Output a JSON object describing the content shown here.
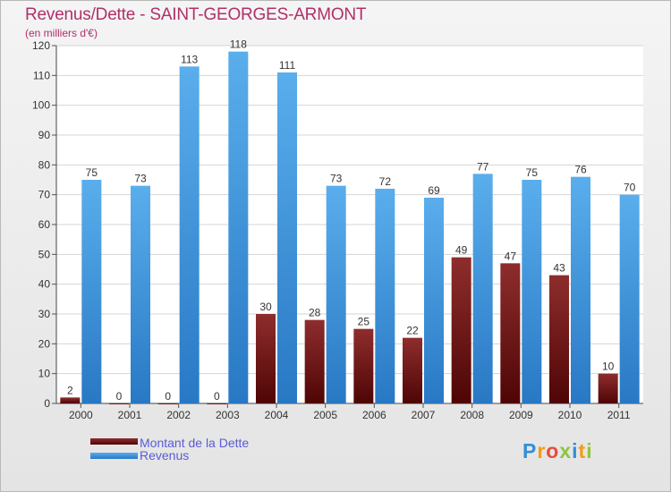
{
  "title": "Revenus/Dette - SAINT-GEORGES-ARMONT",
  "subtitle": "(en milliers d'€)",
  "chart_data": {
    "type": "bar",
    "categories": [
      "2000",
      "2001",
      "2002",
      "2003",
      "2004",
      "2005",
      "2006",
      "2007",
      "2008",
      "2009",
      "2010",
      "2011"
    ],
    "series": [
      {
        "name": "Montant de la Dette",
        "values": [
          2,
          0,
          0,
          0,
          30,
          28,
          25,
          22,
          49,
          47,
          43,
          10
        ],
        "color": "#7a1a1a"
      },
      {
        "name": "Revenus",
        "values": [
          75,
          73,
          113,
          118,
          111,
          73,
          72,
          69,
          77,
          75,
          76,
          70
        ],
        "color": "#4a9ee0"
      }
    ],
    "ylim": [
      0,
      120
    ],
    "yticks": [
      0,
      10,
      20,
      30,
      40,
      50,
      60,
      70,
      80,
      90,
      100,
      110,
      120
    ],
    "grid": true,
    "legend_position": "bottom-left"
  },
  "logo": {
    "letters": [
      "P",
      "r",
      "o",
      "x",
      "i",
      "t",
      "i"
    ],
    "colors": [
      "#2f8fd8",
      "#f39c12",
      "#e74c3c",
      "#8cc63f",
      "#2f8fd8",
      "#f39c12",
      "#8cc63f"
    ]
  }
}
